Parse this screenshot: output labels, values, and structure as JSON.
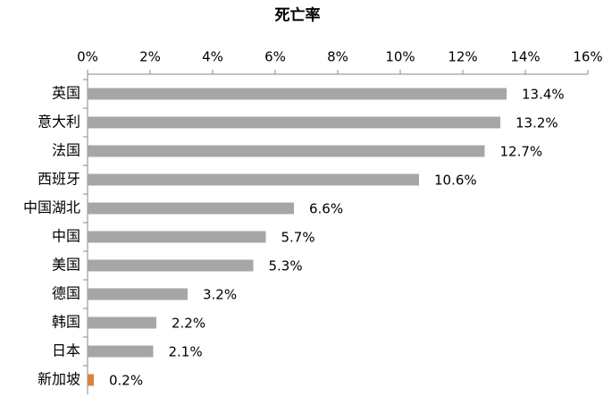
{
  "chart_data": {
    "type": "bar",
    "orientation": "horizontal",
    "title": "死亡率",
    "categories": [
      "英国",
      "意大利",
      "法国",
      "西班牙",
      "中国湖北",
      "中国",
      "美国",
      "德国",
      "韩国",
      "日本",
      "新加坡"
    ],
    "values": [
      13.4,
      13.2,
      12.7,
      10.6,
      6.6,
      5.7,
      5.3,
      3.2,
      2.2,
      2.1,
      0.2
    ],
    "value_labels": [
      "13.4%",
      "13.2%",
      "12.7%",
      "10.6%",
      "6.6%",
      "5.7%",
      "5.3%",
      "3.2%",
      "2.2%",
      "2.1%",
      "0.2%"
    ],
    "colors": [
      "#a6a6a6",
      "#a6a6a6",
      "#a6a6a6",
      "#a6a6a6",
      "#a6a6a6",
      "#a6a6a6",
      "#a6a6a6",
      "#a6a6a6",
      "#a6a6a6",
      "#a6a6a6",
      "#d9823b"
    ],
    "xlim": [
      0,
      16
    ],
    "xticks": [
      {
        "value": 0,
        "label": "0%"
      },
      {
        "value": 2,
        "label": "2%"
      },
      {
        "value": 4,
        "label": "4%"
      },
      {
        "value": 6,
        "label": "6%"
      },
      {
        "value": 8,
        "label": "8%"
      },
      {
        "value": 10,
        "label": "10%"
      },
      {
        "value": 12,
        "label": "12%"
      },
      {
        "value": 14,
        "label": "14%"
      },
      {
        "value": 16,
        "label": "16%"
      }
    ],
    "grid": false
  }
}
